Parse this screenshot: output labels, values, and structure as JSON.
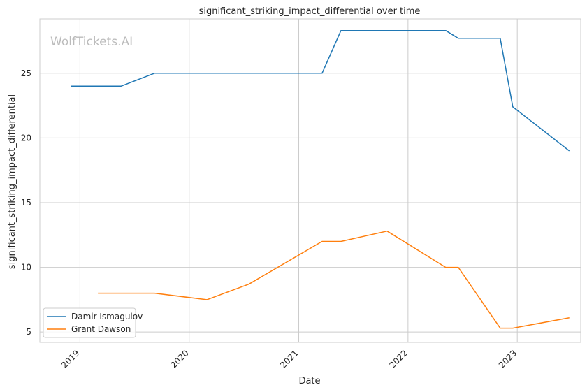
{
  "chart_data": {
    "type": "line",
    "title": "significant_striking_impact_differential over time",
    "xlabel": "Date",
    "ylabel": "significant_striking_impact_differential",
    "watermark": "WolfTickets.AI",
    "x_ticks": [
      "2019",
      "2020",
      "2021",
      "2022",
      "2023"
    ],
    "y_ticks": [
      5,
      10,
      15,
      20,
      25
    ],
    "xlim": [
      "2018-08-20",
      "2023-08-01"
    ],
    "ylim": [
      4.2,
      29.2
    ],
    "grid": true,
    "legend_position": "lower-left",
    "series": [
      {
        "name": "Damir Ismagulov",
        "color": "#1f77b4",
        "points": [
          {
            "x": "2018-12-01",
            "y": 24
          },
          {
            "x": "2019-05-18",
            "y": 24
          },
          {
            "x": "2019-09-07",
            "y": 25
          },
          {
            "x": "2021-03-20",
            "y": 25
          },
          {
            "x": "2021-05-22",
            "y": 28.3
          },
          {
            "x": "2022-05-07",
            "y": 28.3
          },
          {
            "x": "2022-06-18",
            "y": 27.7
          },
          {
            "x": "2022-11-05",
            "y": 27.7
          },
          {
            "x": "2022-12-17",
            "y": 22.4
          },
          {
            "x": "2023-06-24",
            "y": 19
          }
        ]
      },
      {
        "name": "Grant Dawson",
        "color": "#ff7f0e",
        "points": [
          {
            "x": "2019-03-02",
            "y": 8
          },
          {
            "x": "2019-09-07",
            "y": 8
          },
          {
            "x": "2020-02-29",
            "y": 7.5
          },
          {
            "x": "2020-07-18",
            "y": 8.7
          },
          {
            "x": "2021-03-20",
            "y": 12
          },
          {
            "x": "2021-05-22",
            "y": 12
          },
          {
            "x": "2021-10-23",
            "y": 12.8
          },
          {
            "x": "2022-05-07",
            "y": 10
          },
          {
            "x": "2022-06-18",
            "y": 10
          },
          {
            "x": "2022-11-05",
            "y": 5.3
          },
          {
            "x": "2022-12-17",
            "y": 5.3
          },
          {
            "x": "2023-06-24",
            "y": 6.1
          }
        ]
      }
    ]
  }
}
